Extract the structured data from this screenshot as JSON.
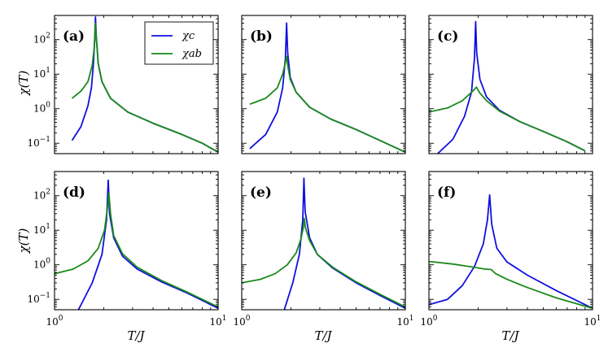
{
  "colors": {
    "chi_c": "#1010e0",
    "chi_ab": "#1a8a1a"
  },
  "chart_data": {
    "type": "line",
    "layout": "2x3 grid of panels, shared log-log axes",
    "xlabel": "T/J",
    "ylabel": "χ(T)",
    "xscale": "log",
    "yscale": "log",
    "xlim": [
      1,
      10
    ],
    "ylim": [
      0.05,
      500
    ],
    "xticks": [
      {
        "value": 1,
        "label": "10^0"
      },
      {
        "value": 10,
        "label": "10^1"
      }
    ],
    "yticks": [
      {
        "value": 0.1,
        "label": "10^-1"
      },
      {
        "value": 1,
        "label": "10^0"
      },
      {
        "value": 10,
        "label": "10^1"
      },
      {
        "value": 100,
        "label": "10^2"
      }
    ],
    "legend": {
      "location": "top-right of panel (a)",
      "entries": [
        {
          "series": "chi_c",
          "label": "χc"
        },
        {
          "series": "chi_ab",
          "label": "χab"
        }
      ]
    },
    "panels": [
      {
        "label": "(a)",
        "series": [
          {
            "name": "chi_c",
            "points": [
              [
                1.28,
                0.12
              ],
              [
                1.45,
                0.3
              ],
              [
                1.6,
                1.2
              ],
              [
                1.68,
                4
              ],
              [
                1.73,
                20
              ],
              [
                1.76,
                100
              ],
              [
                1.78,
                450
              ],
              [
                1.8,
                120
              ],
              [
                1.85,
                20
              ],
              [
                1.95,
                6
              ],
              [
                2.2,
                2
              ],
              [
                2.8,
                0.8
              ],
              [
                4,
                0.38
              ],
              [
                6,
                0.18
              ],
              [
                8,
                0.1
              ],
              [
                10,
                0.055
              ]
            ]
          },
          {
            "name": "chi_ab",
            "points": [
              [
                1.28,
                2
              ],
              [
                1.45,
                3.2
              ],
              [
                1.6,
                6
              ],
              [
                1.7,
                18
              ],
              [
                1.75,
                60
              ],
              [
                1.78,
                300
              ],
              [
                1.8,
                120
              ],
              [
                1.85,
                20
              ],
              [
                1.95,
                6
              ],
              [
                2.2,
                2
              ],
              [
                2.8,
                0.8
              ],
              [
                4,
                0.38
              ],
              [
                6,
                0.18
              ],
              [
                8,
                0.1
              ],
              [
                10,
                0.055
              ]
            ]
          }
        ]
      },
      {
        "label": "(b)",
        "series": [
          {
            "name": "chi_c",
            "points": [
              [
                1.12,
                0.07
              ],
              [
                1.4,
                0.18
              ],
              [
                1.65,
                0.8
              ],
              [
                1.78,
                4
              ],
              [
                1.85,
                30
              ],
              [
                1.88,
                300
              ],
              [
                1.91,
                40
              ],
              [
                1.98,
                8
              ],
              [
                2.15,
                3
              ],
              [
                2.6,
                1.1
              ],
              [
                3.5,
                0.5
              ],
              [
                5,
                0.25
              ],
              [
                7,
                0.12
              ],
              [
                10,
                0.055
              ]
            ]
          },
          {
            "name": "chi_ab",
            "points": [
              [
                1.12,
                1.35
              ],
              [
                1.4,
                2
              ],
              [
                1.65,
                4
              ],
              [
                1.78,
                10
              ],
              [
                1.85,
                22
              ],
              [
                1.88,
                33
              ],
              [
                1.91,
                18
              ],
              [
                1.98,
                7
              ],
              [
                2.15,
                3
              ],
              [
                2.6,
                1.1
              ],
              [
                3.5,
                0.5
              ],
              [
                5,
                0.25
              ],
              [
                7,
                0.12
              ],
              [
                10,
                0.055
              ]
            ]
          }
        ]
      },
      {
        "label": "(c)",
        "series": [
          {
            "name": "chi_c",
            "points": [
              [
                1.13,
                0.05
              ],
              [
                1.4,
                0.13
              ],
              [
                1.65,
                0.6
              ],
              [
                1.82,
                3
              ],
              [
                1.9,
                30
              ],
              [
                1.93,
                330
              ],
              [
                1.96,
                40
              ],
              [
                2.05,
                7
              ],
              [
                2.25,
                2.2
              ],
              [
                2.7,
                0.9
              ],
              [
                3.6,
                0.42
              ],
              [
                5,
                0.22
              ],
              [
                7,
                0.11
              ],
              [
                9,
                0.06
              ]
            ]
          },
          {
            "name": "chi_ab",
            "points": [
              [
                1,
                0.8
              ],
              [
                1.3,
                1.05
              ],
              [
                1.6,
                1.7
              ],
              [
                1.85,
                3.2
              ],
              [
                1.95,
                4.2
              ],
              [
                2.05,
                2.8
              ],
              [
                2.25,
                1.7
              ],
              [
                2.7,
                0.85
              ],
              [
                3.6,
                0.42
              ],
              [
                5,
                0.22
              ],
              [
                7,
                0.11
              ],
              [
                9,
                0.06
              ]
            ]
          }
        ]
      },
      {
        "label": "(d)",
        "series": [
          {
            "name": "chi_c",
            "points": [
              [
                1.4,
                0.05
              ],
              [
                1.7,
                0.3
              ],
              [
                1.95,
                2
              ],
              [
                2.08,
                20
              ],
              [
                2.13,
                280
              ],
              [
                2.17,
                30
              ],
              [
                2.3,
                6
              ],
              [
                2.6,
                1.8
              ],
              [
                3.2,
                0.75
              ],
              [
                4.5,
                0.32
              ],
              [
                6.5,
                0.15
              ],
              [
                10,
                0.055
              ]
            ]
          },
          {
            "name": "chi_ab",
            "points": [
              [
                1,
                0.55
              ],
              [
                1.3,
                0.75
              ],
              [
                1.6,
                1.3
              ],
              [
                1.85,
                3
              ],
              [
                2.02,
                10
              ],
              [
                2.1,
                40
              ],
              [
                2.15,
                120
              ],
              [
                2.2,
                30
              ],
              [
                2.3,
                7
              ],
              [
                2.6,
                2.1
              ],
              [
                3.2,
                0.85
              ],
              [
                4.5,
                0.35
              ],
              [
                6.5,
                0.16
              ],
              [
                10,
                0.06
              ]
            ]
          }
        ]
      },
      {
        "label": "(e)",
        "series": [
          {
            "name": "chi_c",
            "points": [
              [
                1.82,
                0.05
              ],
              [
                2.05,
                0.3
              ],
              [
                2.25,
                2
              ],
              [
                2.36,
                20
              ],
              [
                2.4,
                320
              ],
              [
                2.44,
                35
              ],
              [
                2.6,
                6
              ],
              [
                2.9,
                2
              ],
              [
                3.6,
                0.8
              ],
              [
                5,
                0.3
              ],
              [
                7,
                0.13
              ],
              [
                10,
                0.055
              ]
            ]
          },
          {
            "name": "chi_ab",
            "points": [
              [
                1,
                0.3
              ],
              [
                1.3,
                0.38
              ],
              [
                1.6,
                0.55
              ],
              [
                1.9,
                1
              ],
              [
                2.15,
                2.2
              ],
              [
                2.3,
                5.5
              ],
              [
                2.38,
                12
              ],
              [
                2.41,
                22
              ],
              [
                2.45,
                12
              ],
              [
                2.6,
                5
              ],
              [
                2.9,
                2
              ],
              [
                3.6,
                0.85
              ],
              [
                5,
                0.32
              ],
              [
                7,
                0.14
              ],
              [
                10,
                0.06
              ]
            ]
          }
        ]
      },
      {
        "label": "(f)",
        "series": [
          {
            "name": "chi_c",
            "points": [
              [
                1,
                0.07
              ],
              [
                1.3,
                0.1
              ],
              [
                1.6,
                0.25
              ],
              [
                1.9,
                0.9
              ],
              [
                2.15,
                4
              ],
              [
                2.28,
                20
              ],
              [
                2.35,
                105
              ],
              [
                2.42,
                15
              ],
              [
                2.6,
                3
              ],
              [
                3,
                1.2
              ],
              [
                4,
                0.5
              ],
              [
                6,
                0.18
              ],
              [
                10,
                0.055
              ]
            ]
          },
          {
            "name": "chi_ab",
            "points": [
              [
                1,
                1.25
              ],
              [
                1.4,
                1.05
              ],
              [
                1.8,
                0.88
              ],
              [
                2.2,
                0.75
              ],
              [
                2.4,
                0.73
              ],
              [
                2.55,
                0.56
              ],
              [
                3,
                0.38
              ],
              [
                4,
                0.22
              ],
              [
                6,
                0.11
              ],
              [
                10,
                0.055
              ]
            ]
          }
        ]
      }
    ]
  }
}
